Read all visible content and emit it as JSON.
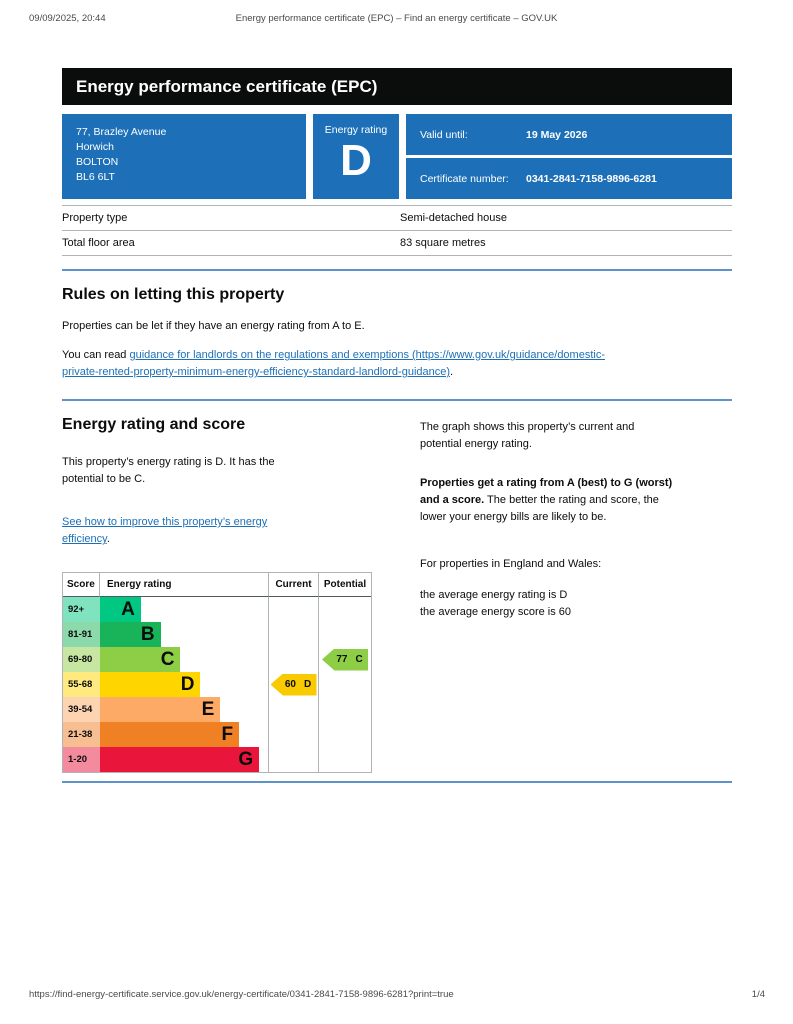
{
  "print_header": {
    "datetime": "09/09/2025, 20:44",
    "title": "Energy performance certificate (EPC) – Find an energy certificate – GOV.UK"
  },
  "banner": {
    "title": "Energy performance certificate (EPC)"
  },
  "summary": {
    "address": "77, Brazley Avenue\nHorwich\nBOLTON\nBL6 6LT",
    "rating_label": "Energy rating",
    "rating": "D",
    "valid_until_label": "Valid until:",
    "valid_until": "19 May 2026",
    "certificate_number_label": "Certificate number:",
    "certificate_number": "0341-2841-7158-9896-6281",
    "box_color": "#1d70b8"
  },
  "facts": {
    "rows": [
      {
        "label": "Property type",
        "value": "Semi-detached house"
      },
      {
        "label": "Total floor area",
        "value": "83 square metres"
      }
    ]
  },
  "rules_section": {
    "heading": "Rules on letting this property",
    "para1": "Properties can be let if they have an energy rating from A to E.",
    "link_prefix": "You can read ",
    "link_text": "guidance for landlords on the regulations and exemptions (https://www.gov.uk/guidance/domestic-\nprivate-rented-property-minimum-energy-efficiency-standard-landlord-guidance)",
    "link_suffix": "."
  },
  "rating_section": {
    "heading": "Energy rating and score",
    "para1": "This property’s energy rating is D. It has the\npotential to be C.",
    "improve_link_text": "See how to improve this property’s energy\nefficiency",
    "improve_link_suffix": ".",
    "right": {
      "para1": "The graph shows this property’s current and\npotential energy rating.",
      "para2_bold": "Properties get a rating from A (best) to G (worst)\nand a score.",
      "para2_rest": " The better the rating and score, the\nlower your energy bills are likely to be.",
      "para3": "For properties in England and Wales:",
      "para4": "the average energy rating is D\nthe average energy score is 60"
    }
  },
  "chart": {
    "headers": {
      "score": "Score",
      "rating": "Energy rating",
      "current": "Current",
      "potential": "Potential"
    },
    "bands": [
      {
        "score": "92+",
        "letter": "A",
        "color": "#00c781",
        "tint": "#7fe3c0",
        "width_pct": 24.3
      },
      {
        "score": "81-91",
        "letter": "B",
        "color": "#19b459",
        "tint": "#8cd9ac",
        "width_pct": 36.1
      },
      {
        "score": "69-80",
        "letter": "C",
        "color": "#8dce46",
        "tint": "#c6e6a2",
        "width_pct": 47.9
      },
      {
        "score": "55-68",
        "letter": "D",
        "color": "#ffd500",
        "tint": "#ffea7f",
        "width_pct": 59.8
      },
      {
        "score": "39-54",
        "letter": "E",
        "color": "#fcaa65",
        "tint": "#fdd4b2",
        "width_pct": 71.6
      },
      {
        "score": "21-38",
        "letter": "F",
        "color": "#ef8023",
        "tint": "#f7bf91",
        "width_pct": 82.8
      },
      {
        "score": "1-20",
        "letter": "G",
        "color": "#e9153b",
        "tint": "#f48a9d",
        "width_pct": 94.7
      }
    ],
    "current": {
      "score": "60",
      "letter": "D",
      "band_index": 3,
      "color": "#f9ca00"
    },
    "potential": {
      "score": "77",
      "letter": "C",
      "band_index": 2,
      "color": "#8dce46"
    }
  },
  "chart_data": {
    "type": "bar",
    "title": "Energy rating and score",
    "columns": [
      "Score",
      "Energy rating",
      "Current",
      "Potential"
    ],
    "categories": [
      "A",
      "B",
      "C",
      "D",
      "E",
      "F",
      "G"
    ],
    "score_ranges": [
      "92+",
      "81-91",
      "69-80",
      "55-68",
      "39-54",
      "21-38",
      "1-20"
    ],
    "band_colors": [
      "#00c781",
      "#19b459",
      "#8dce46",
      "#ffd500",
      "#fcaa65",
      "#ef8023",
      "#e9153b"
    ],
    "current": {
      "score": 60,
      "band": "D"
    },
    "potential": {
      "score": 77,
      "band": "C"
    },
    "legend_position": "none",
    "grid": false
  },
  "footer": {
    "url": "https://find-energy-certificate.service.gov.uk/energy-certificate/0341-2841-7158-9896-6281?print=true",
    "page": "1/4"
  }
}
